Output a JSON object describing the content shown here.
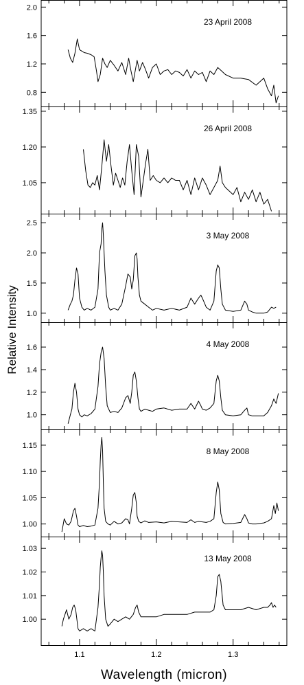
{
  "ylabel": "Relative Intensity",
  "xlabel": "Wavelength (micron)",
  "chart_data": [
    {
      "type": "line",
      "title": "23 April 2008",
      "ylim": [
        0.6,
        2.1
      ],
      "yticks": [
        "0.8",
        "1.2",
        "1.6",
        "2.0"
      ],
      "yticks_values": [
        0.8,
        1.2,
        1.6,
        2.0
      ],
      "series": [
        {
          "x": [
            1.085,
            1.088,
            1.091,
            1.094,
            1.097,
            1.1,
            1.103,
            1.106,
            1.11,
            1.115,
            1.119,
            1.122,
            1.124,
            1.127,
            1.13,
            1.133,
            1.136,
            1.14,
            1.145,
            1.15,
            1.155,
            1.16,
            1.164,
            1.167,
            1.17,
            1.175,
            1.178,
            1.182,
            1.186,
            1.19,
            1.195,
            1.2,
            1.205,
            1.21,
            1.215,
            1.22,
            1.225,
            1.23,
            1.235,
            1.24,
            1.245,
            1.25,
            1.255,
            1.26,
            1.265,
            1.27,
            1.275,
            1.28,
            1.283,
            1.29,
            1.3,
            1.31,
            1.32,
            1.33,
            1.34,
            1.345,
            1.35,
            1.353,
            1.356,
            1.359
          ],
          "y": [
            1.4,
            1.28,
            1.22,
            1.35,
            1.55,
            1.4,
            1.38,
            1.36,
            1.35,
            1.33,
            1.3,
            1.1,
            0.95,
            1.05,
            1.28,
            1.2,
            1.15,
            1.25,
            1.18,
            1.1,
            1.22,
            1.05,
            1.28,
            1.1,
            0.95,
            1.25,
            1.1,
            1.22,
            1.12,
            1.0,
            1.15,
            1.2,
            1.05,
            1.1,
            1.12,
            1.05,
            1.1,
            1.08,
            1.03,
            1.12,
            1.0,
            1.1,
            1.05,
            1.08,
            0.95,
            1.1,
            1.05,
            1.15,
            1.12,
            1.05,
            1.0,
            1.0,
            0.98,
            0.9,
            1.0,
            0.85,
            0.75,
            0.9,
            0.65,
            0.75
          ]
        }
      ]
    },
    {
      "type": "line",
      "title": "26 April 2008",
      "ylim": [
        0.92,
        1.37
      ],
      "yticks": [
        "1.05",
        "1.20",
        "1.35"
      ],
      "yticks_values": [
        1.05,
        1.2,
        1.35
      ],
      "series": [
        {
          "x": [
            1.105,
            1.108,
            1.111,
            1.114,
            1.117,
            1.12,
            1.123,
            1.126,
            1.129,
            1.132,
            1.135,
            1.138,
            1.141,
            1.144,
            1.147,
            1.15,
            1.153,
            1.156,
            1.159,
            1.162,
            1.165,
            1.168,
            1.171,
            1.174,
            1.177,
            1.18,
            1.183,
            1.186,
            1.189,
            1.192,
            1.196,
            1.2,
            1.205,
            1.21,
            1.215,
            1.22,
            1.225,
            1.23,
            1.235,
            1.24,
            1.245,
            1.25,
            1.255,
            1.26,
            1.265,
            1.27,
            1.275,
            1.28,
            1.283,
            1.286,
            1.29,
            1.3,
            1.305,
            1.31,
            1.315,
            1.32,
            1.325,
            1.33,
            1.335,
            1.34,
            1.345,
            1.35
          ],
          "y": [
            1.19,
            1.1,
            1.04,
            1.03,
            1.05,
            1.04,
            1.08,
            1.02,
            1.12,
            1.23,
            1.14,
            1.21,
            1.12,
            1.04,
            1.09,
            1.06,
            1.03,
            1.07,
            1.04,
            1.14,
            1.21,
            1.1,
            1.0,
            1.21,
            1.16,
            0.99,
            1.06,
            1.13,
            1.19,
            1.06,
            1.08,
            1.06,
            1.05,
            1.07,
            1.05,
            1.07,
            1.06,
            1.06,
            1.02,
            1.06,
            1.0,
            1.07,
            1.02,
            1.07,
            1.04,
            1.0,
            1.03,
            1.06,
            1.12,
            1.05,
            1.03,
            1.0,
            1.03,
            0.97,
            1.01,
            0.98,
            1.02,
            0.97,
            1.01,
            0.96,
            0.98,
            0.93
          ]
        }
      ]
    },
    {
      "type": "line",
      "title": "3 May 2008",
      "ylim": [
        0.85,
        2.65
      ],
      "yticks": [
        "1.0",
        "1.5",
        "2.0",
        "2.5"
      ],
      "yticks_values": [
        1.0,
        1.5,
        2.0,
        2.5
      ],
      "series": [
        {
          "x": [
            1.085,
            1.088,
            1.09,
            1.092,
            1.094,
            1.096,
            1.098,
            1.1,
            1.103,
            1.106,
            1.11,
            1.115,
            1.12,
            1.124,
            1.126,
            1.128,
            1.129,
            1.13,
            1.131,
            1.132,
            1.133,
            1.135,
            1.138,
            1.14,
            1.145,
            1.15,
            1.155,
            1.16,
            1.163,
            1.166,
            1.168,
            1.17,
            1.172,
            1.174,
            1.175,
            1.176,
            1.178,
            1.18,
            1.185,
            1.19,
            1.195,
            1.2,
            1.21,
            1.22,
            1.23,
            1.24,
            1.245,
            1.25,
            1.255,
            1.258,
            1.26,
            1.265,
            1.27,
            1.275,
            1.278,
            1.28,
            1.282,
            1.284,
            1.286,
            1.29,
            1.3,
            1.31,
            1.315,
            1.318,
            1.32,
            1.325,
            1.33,
            1.34,
            1.345,
            1.35,
            1.353,
            1.356
          ],
          "y": [
            1.05,
            1.15,
            1.2,
            1.3,
            1.55,
            1.75,
            1.65,
            1.25,
            1.1,
            1.05,
            1.08,
            1.05,
            1.1,
            1.4,
            2.0,
            2.15,
            2.4,
            2.5,
            2.3,
            2.0,
            1.7,
            1.3,
            1.1,
            1.05,
            1.08,
            1.05,
            1.15,
            1.45,
            1.65,
            1.6,
            1.4,
            1.55,
            1.95,
            2.0,
            1.9,
            1.6,
            1.3,
            1.2,
            1.15,
            1.1,
            1.05,
            1.08,
            1.05,
            1.08,
            1.05,
            1.1,
            1.25,
            1.15,
            1.25,
            1.3,
            1.25,
            1.1,
            1.05,
            1.2,
            1.7,
            1.8,
            1.75,
            1.4,
            1.15,
            1.05,
            1.03,
            1.05,
            1.2,
            1.15,
            1.05,
            1.02,
            1.0,
            1.0,
            1.02,
            1.1,
            1.08,
            1.1
          ]
        }
      ]
    },
    {
      "type": "line",
      "title": "4 May 2008",
      "ylim": [
        0.87,
        1.82
      ],
      "yticks": [
        "1.0",
        "1.2",
        "1.4",
        "1.6"
      ],
      "yticks_values": [
        1.0,
        1.2,
        1.4,
        1.6
      ],
      "series": [
        {
          "x": [
            1.085,
            1.088,
            1.09,
            1.092,
            1.094,
            1.096,
            1.098,
            1.1,
            1.103,
            1.106,
            1.11,
            1.115,
            1.12,
            1.124,
            1.126,
            1.128,
            1.13,
            1.132,
            1.134,
            1.136,
            1.14,
            1.145,
            1.15,
            1.155,
            1.16,
            1.163,
            1.166,
            1.168,
            1.17,
            1.172,
            1.174,
            1.176,
            1.178,
            1.18,
            1.185,
            1.19,
            1.195,
            1.2,
            1.21,
            1.22,
            1.23,
            1.24,
            1.245,
            1.25,
            1.255,
            1.258,
            1.26,
            1.265,
            1.27,
            1.275,
            1.278,
            1.28,
            1.282,
            1.284,
            1.286,
            1.29,
            1.3,
            1.31,
            1.315,
            1.318,
            1.32,
            1.325,
            1.33,
            1.34,
            1.345,
            1.35,
            1.353,
            1.356,
            1.359
          ],
          "y": [
            0.92,
            1.0,
            1.05,
            1.2,
            1.28,
            1.2,
            1.05,
            1.0,
            0.98,
            1.0,
            0.99,
            1.01,
            1.05,
            1.25,
            1.45,
            1.55,
            1.6,
            1.5,
            1.25,
            1.08,
            1.02,
            1.03,
            1.02,
            1.06,
            1.15,
            1.17,
            1.1,
            1.2,
            1.35,
            1.38,
            1.3,
            1.15,
            1.05,
            1.03,
            1.05,
            1.04,
            1.03,
            1.05,
            1.06,
            1.04,
            1.05,
            1.05,
            1.1,
            1.05,
            1.12,
            1.08,
            1.05,
            1.04,
            1.06,
            1.1,
            1.3,
            1.35,
            1.3,
            1.15,
            1.04,
            1.0,
            0.99,
            1.0,
            1.04,
            1.06,
            1.0,
            0.99,
            0.99,
            0.99,
            1.02,
            1.08,
            1.14,
            1.1,
            1.19
          ]
        }
      ]
    },
    {
      "type": "line",
      "title": "8 May 2008",
      "ylim": [
        0.976,
        1.18
      ],
      "yticks": [
        "1.00",
        "1.05",
        "1.10",
        "1.15"
      ],
      "yticks_values": [
        1.0,
        1.05,
        1.1,
        1.15
      ],
      "series": [
        {
          "x": [
            1.077,
            1.08,
            1.083,
            1.086,
            1.089,
            1.092,
            1.094,
            1.096,
            1.098,
            1.1,
            1.105,
            1.11,
            1.115,
            1.12,
            1.124,
            1.126,
            1.127,
            1.128,
            1.129,
            1.13,
            1.131,
            1.132,
            1.134,
            1.137,
            1.14,
            1.145,
            1.15,
            1.155,
            1.16,
            1.163,
            1.165,
            1.168,
            1.17,
            1.172,
            1.174,
            1.175,
            1.177,
            1.18,
            1.185,
            1.19,
            1.2,
            1.21,
            1.22,
            1.23,
            1.24,
            1.245,
            1.25,
            1.255,
            1.26,
            1.265,
            1.27,
            1.275,
            1.278,
            1.28,
            1.282,
            1.284,
            1.287,
            1.29,
            1.3,
            1.31,
            1.315,
            1.318,
            1.32,
            1.325,
            1.33,
            1.34,
            1.345,
            1.35,
            1.353,
            1.355,
            1.357,
            1.359
          ],
          "y": [
            0.985,
            1.01,
            1.0,
            0.998,
            1.005,
            1.025,
            1.03,
            1.015,
            0.998,
            0.995,
            0.997,
            0.995,
            0.996,
            0.998,
            1.03,
            1.08,
            1.12,
            1.15,
            1.165,
            1.14,
            1.08,
            1.03,
            1.005,
            1.0,
            0.998,
            1.005,
            1.0,
            1.002,
            1.01,
            1.008,
            1.0,
            1.03,
            1.055,
            1.06,
            1.04,
            1.015,
            1.005,
            1.002,
            1.006,
            1.003,
            1.004,
            1.002,
            1.005,
            1.004,
            1.003,
            1.008,
            1.003,
            1.005,
            1.004,
            1.003,
            1.005,
            1.01,
            1.06,
            1.08,
            1.065,
            1.02,
            1.003,
            1.0,
            1.001,
            1.003,
            1.018,
            1.01,
            1.002,
            1.0,
            1.0,
            1.002,
            1.005,
            1.01,
            1.035,
            1.02,
            1.04,
            1.025
          ]
        }
      ]
    },
    {
      "type": "line",
      "title": "13 May 2008",
      "ylim": [
        0.989,
        1.035
      ],
      "yticks": [
        "1.00",
        "1.01",
        "1.02",
        "1.03"
      ],
      "yticks_values": [
        1.0,
        1.01,
        1.02,
        1.03
      ],
      "series": [
        {
          "x": [
            1.077,
            1.079,
            1.081,
            1.083,
            1.086,
            1.089,
            1.091,
            1.093,
            1.095,
            1.098,
            1.1,
            1.105,
            1.11,
            1.115,
            1.12,
            1.124,
            1.126,
            1.127,
            1.128,
            1.129,
            1.13,
            1.131,
            1.132,
            1.134,
            1.137,
            1.14,
            1.145,
            1.15,
            1.155,
            1.16,
            1.165,
            1.17,
            1.173,
            1.175,
            1.177,
            1.18,
            1.185,
            1.19,
            1.2,
            1.21,
            1.22,
            1.23,
            1.24,
            1.25,
            1.26,
            1.27,
            1.275,
            1.278,
            1.28,
            1.282,
            1.284,
            1.287,
            1.29,
            1.3,
            1.31,
            1.32,
            1.33,
            1.34,
            1.345,
            1.348,
            1.35,
            1.352,
            1.354,
            1.356
          ],
          "y": [
            0.997,
            1.0,
            1.002,
            1.004,
            1.0,
            1.002,
            1.005,
            1.006,
            1.004,
            0.996,
            0.995,
            0.996,
            0.995,
            0.996,
            0.995,
            1.005,
            1.015,
            1.022,
            1.026,
            1.029,
            1.027,
            1.02,
            1.01,
            1.0,
            0.997,
            0.998,
            1.0,
            0.999,
            1.0,
            1.001,
            1.0,
            1.002,
            1.005,
            1.006,
            1.003,
            1.001,
            1.001,
            1.001,
            1.001,
            1.002,
            1.002,
            1.002,
            1.002,
            1.003,
            1.003,
            1.003,
            1.004,
            1.01,
            1.018,
            1.019,
            1.016,
            1.006,
            1.004,
            1.004,
            1.004,
            1.005,
            1.004,
            1.005,
            1.005,
            1.006,
            1.007,
            1.005,
            1.006,
            1.005
          ]
        }
      ]
    }
  ],
  "xaxis": {
    "xlim": [
      1.05,
      1.37
    ],
    "ticks": [
      "1.1",
      "1.2",
      "1.3"
    ],
    "tick_values": [
      1.1,
      1.2,
      1.3
    ]
  }
}
